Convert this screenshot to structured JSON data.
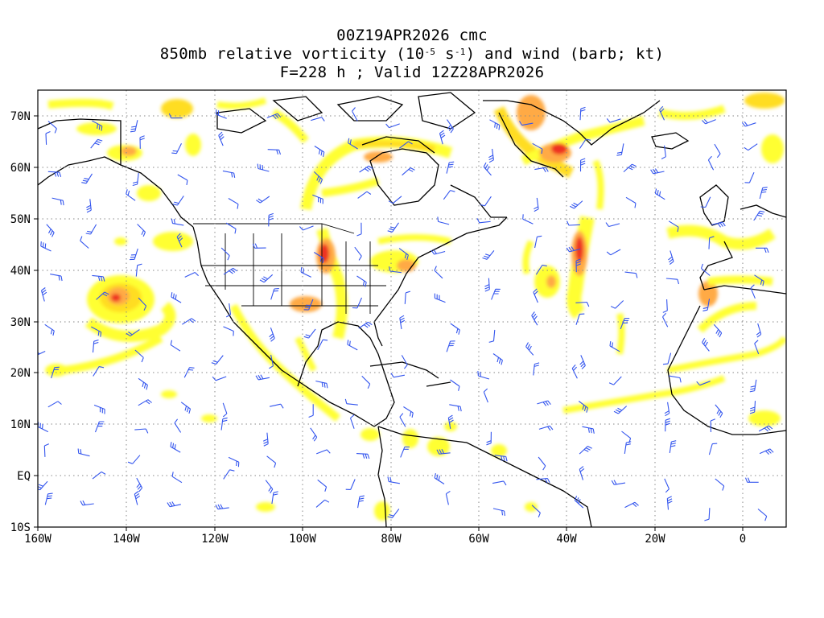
{
  "header": {
    "line1": "00Z19APR2026 cmc",
    "line2_prefix": "850mb relative vorticity (10",
    "line2_exp1": "-5",
    "line2_mid": " s",
    "line2_exp2": "-1",
    "line2_suffix": ") and wind (barb; kt)",
    "line3": "F=228 h ; Valid 12Z28APR2026"
  },
  "axes": {
    "x_ticks": [
      "160W",
      "140W",
      "120W",
      "100W",
      "80W",
      "60W",
      "40W",
      "20W",
      "0"
    ],
    "y_ticks": [
      "70N",
      "60N",
      "50N",
      "40N",
      "30N",
      "20N",
      "10N",
      "EQ",
      "10S"
    ]
  },
  "colors": {
    "shade_light": "#ffff33",
    "shade_yellow": "#ffdd22",
    "shade_orange": "#ffaa44",
    "shade_red": "#ee3322",
    "barb": "#3355ee",
    "coast": "#000000",
    "grid": "#888888"
  },
  "map_extent": {
    "lon": [
      -160,
      10
    ],
    "lat": [
      -10,
      75
    ]
  }
}
